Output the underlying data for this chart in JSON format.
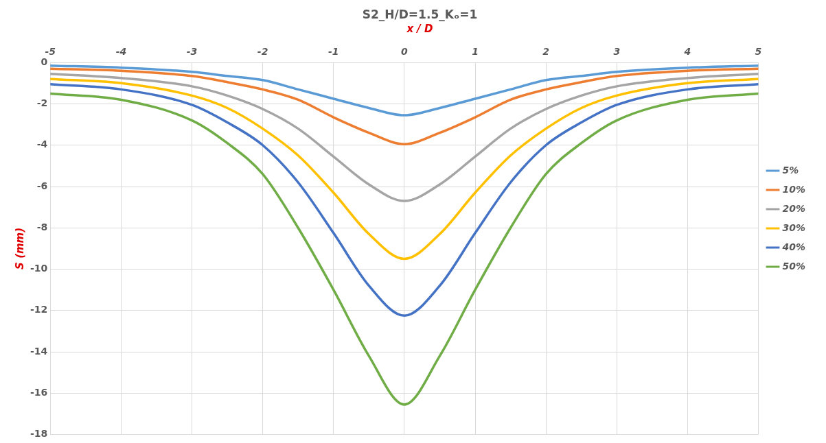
{
  "chart_data": {
    "type": "line",
    "title": "S2_H/D=1.5_Kₒ=1",
    "xlabel": "x / D",
    "ylabel": "S (mm)",
    "x": [
      -5,
      -4,
      -3,
      -2.5,
      -2,
      -1.5,
      -1,
      -0.5,
      0,
      0.5,
      1,
      1.5,
      2,
      2.5,
      3,
      4,
      5
    ],
    "series": [
      {
        "name": "5%",
        "color": "#5b9bd5",
        "values": [
          -0.15,
          -0.25,
          -0.45,
          -0.65,
          -0.85,
          -1.3,
          -1.75,
          -2.2,
          -2.55,
          -2.2,
          -1.75,
          -1.3,
          -0.85,
          -0.65,
          -0.45,
          -0.25,
          -0.15
        ]
      },
      {
        "name": "10%",
        "color": "#ed7d31",
        "values": [
          -0.3,
          -0.4,
          -0.65,
          -0.95,
          -1.3,
          -1.8,
          -2.65,
          -3.4,
          -3.95,
          -3.4,
          -2.65,
          -1.8,
          -1.3,
          -0.95,
          -0.65,
          -0.4,
          -0.3
        ]
      },
      {
        "name": "20%",
        "color": "#a5a5a5",
        "values": [
          -0.55,
          -0.75,
          -1.15,
          -1.6,
          -2.25,
          -3.2,
          -4.55,
          -5.9,
          -6.7,
          -5.9,
          -4.55,
          -3.2,
          -2.25,
          -1.6,
          -1.15,
          -0.75,
          -0.55
        ]
      },
      {
        "name": "30%",
        "color": "#ffc000",
        "values": [
          -0.8,
          -1.0,
          -1.6,
          -2.2,
          -3.2,
          -4.5,
          -6.3,
          -8.3,
          -9.5,
          -8.3,
          -6.3,
          -4.5,
          -3.2,
          -2.2,
          -1.6,
          -1.0,
          -0.8
        ]
      },
      {
        "name": "40%",
        "color": "#4472c4",
        "values": [
          -1.05,
          -1.3,
          -2.05,
          -2.9,
          -4.0,
          -5.8,
          -8.25,
          -10.8,
          -12.25,
          -10.8,
          -8.25,
          -5.8,
          -4.0,
          -2.9,
          -2.05,
          -1.3,
          -1.05
        ]
      },
      {
        "name": "50%",
        "color": "#70ad47",
        "values": [
          -1.5,
          -1.8,
          -2.8,
          -3.9,
          -5.4,
          -8.0,
          -11.0,
          -14.2,
          -16.55,
          -14.2,
          -11.0,
          -8.0,
          -5.4,
          -3.9,
          -2.8,
          -1.8,
          -1.5
        ]
      }
    ],
    "xlim": [
      -5,
      5
    ],
    "xticks": [
      -5,
      -4,
      -3,
      -2,
      -1,
      0,
      1,
      2,
      3,
      4,
      5
    ],
    "ylim": [
      -18,
      0
    ],
    "yticks": [
      0,
      -2,
      -4,
      -6,
      -8,
      -10,
      -12,
      -14,
      -16,
      -18
    ],
    "grid": true,
    "legend": "right",
    "marker": "none",
    "line_style": "solid"
  }
}
